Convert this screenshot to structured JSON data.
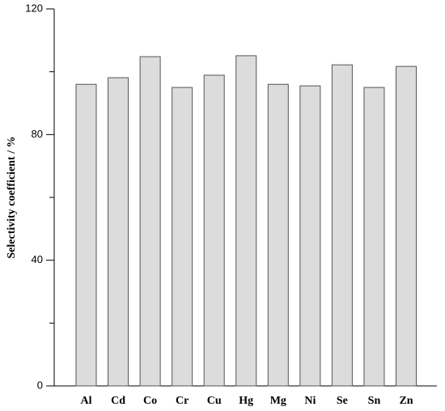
{
  "chart_data": {
    "type": "bar",
    "y_label": "Selectivity coefficient / %",
    "categories": [
      "Al",
      "Cd",
      "Co",
      "Cr",
      "Cu",
      "Hg",
      "Mg",
      "Ni",
      "Se",
      "Sn",
      "Zn"
    ],
    "values": [
      96,
      98.1,
      104.8,
      95,
      98.9,
      105.1,
      96,
      95.5,
      102.2,
      95,
      101.7
    ],
    "color": "#dcdcdc",
    "ylim": [
      0,
      120
    ],
    "yticks": [
      0,
      40,
      80,
      120
    ],
    "y_minor_ticks": [
      20,
      60,
      100
    ],
    "grid": false
  }
}
